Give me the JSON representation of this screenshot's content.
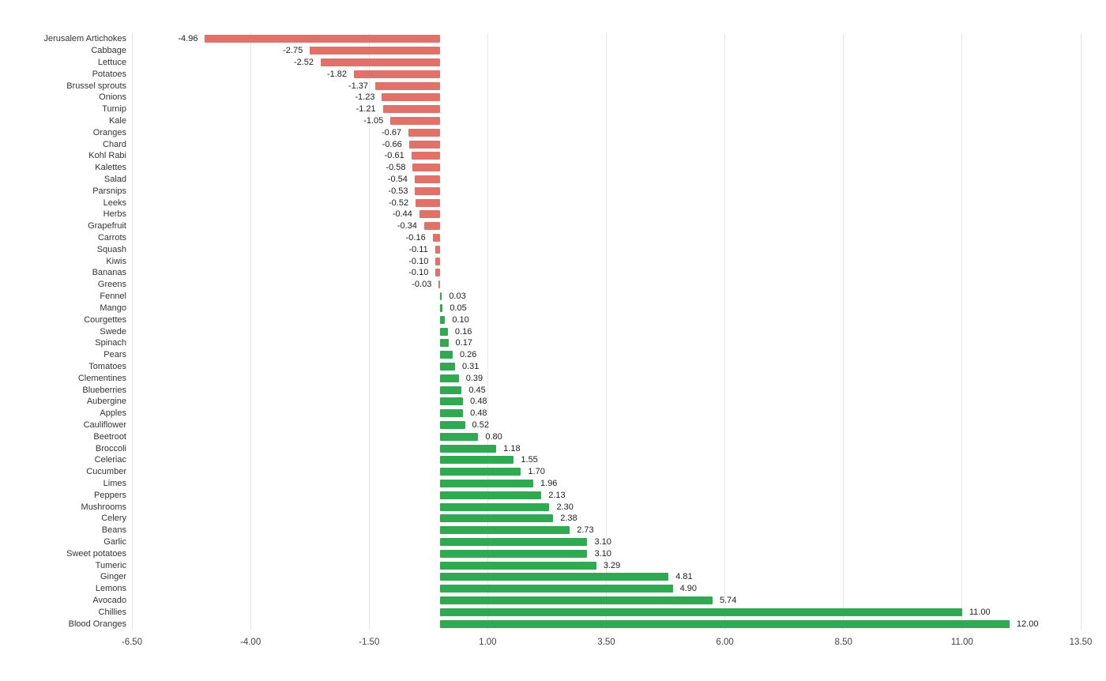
{
  "chart_data": {
    "type": "bar",
    "orientation": "horizontal",
    "title": "",
    "xlabel": "",
    "ylabel": "",
    "legend": "none",
    "grid": true,
    "xlim": [
      -6.5,
      13.5
    ],
    "xticks": [
      -6.5,
      -4.0,
      -1.5,
      1.0,
      3.5,
      6.0,
      8.5,
      11.0,
      13.5
    ],
    "xtick_labels": [
      "-6.50",
      "-4.00",
      "-1.50",
      "1.00",
      "3.50",
      "6.00",
      "8.50",
      "11.00",
      "13.50"
    ],
    "colors": {
      "positive": "#30A952",
      "negative": "#E0726A",
      "gridline": "#E6E6E6",
      "category_label": "#333333",
      "value_label": "#212121",
      "tick_label": "#444444",
      "background": "#FFFFFF"
    },
    "categories": [
      "Jerusalem Artichokes",
      "Cabbage",
      "Lettuce",
      "Potatoes",
      "Brussel sprouts",
      "Onions",
      "Turnip",
      "Kale",
      "Oranges",
      "Chard",
      "Kohl Rabi",
      "Kalettes",
      "Salad",
      "Parsnips",
      "Leeks",
      "Herbs",
      "Grapefruit",
      "Carrots",
      "Squash",
      "Kiwis",
      "Bananas",
      "Greens",
      "Fennel",
      "Mango",
      "Courgettes",
      "Swede",
      "Spinach",
      "Pears",
      "Tomatoes",
      "Clementines",
      "Blueberries",
      "Aubergine",
      "Apples",
      "Cauliflower",
      "Beetroot",
      "Broccoli",
      "Celeriac",
      "Cucumber",
      "Limes",
      "Peppers",
      "Mushrooms",
      "Celery",
      "Beans",
      "Garlic",
      "Sweet potatoes",
      "Tumeric",
      "Ginger",
      "Lemons",
      "Avocado",
      "Chillies",
      "Blood Oranges"
    ],
    "values": [
      -4.96,
      -2.75,
      -2.52,
      -1.82,
      -1.37,
      -1.23,
      -1.21,
      -1.05,
      -0.67,
      -0.66,
      -0.61,
      -0.58,
      -0.54,
      -0.53,
      -0.52,
      -0.44,
      -0.34,
      -0.16,
      -0.11,
      -0.1,
      -0.1,
      -0.03,
      0.03,
      0.05,
      0.1,
      0.16,
      0.17,
      0.26,
      0.31,
      0.39,
      0.45,
      0.48,
      0.48,
      0.52,
      0.8,
      1.18,
      1.55,
      1.7,
      1.96,
      2.13,
      2.3,
      2.38,
      2.73,
      3.1,
      3.1,
      3.29,
      4.81,
      4.9,
      5.74,
      11.0,
      12.0
    ],
    "value_labels": [
      "-4.96",
      "-2.75",
      "-2.52",
      "-1.82",
      "-1.37",
      "-1.23",
      "-1.21",
      "-1.05",
      "-0.67",
      "-0.66",
      "-0.61",
      "-0.58",
      "-0.54",
      "-0.53",
      "-0.52",
      "-0.44",
      "-0.34",
      "-0.16",
      "-0.11",
      "-0.10",
      "-0.10",
      "-0.03",
      "0.03",
      "0.05",
      "0.10",
      "0.16",
      "0.17",
      "0.26",
      "0.31",
      "0.39",
      "0.45",
      "0.48",
      "0.48",
      "0.52",
      "0.80",
      "1.18",
      "1.55",
      "1.70",
      "1.96",
      "2.13",
      "2.30",
      "2.38",
      "2.73",
      "3.10",
      "3.10",
      "3.29",
      "4.81",
      "4.90",
      "5.74",
      "11.00",
      "12.00"
    ]
  }
}
